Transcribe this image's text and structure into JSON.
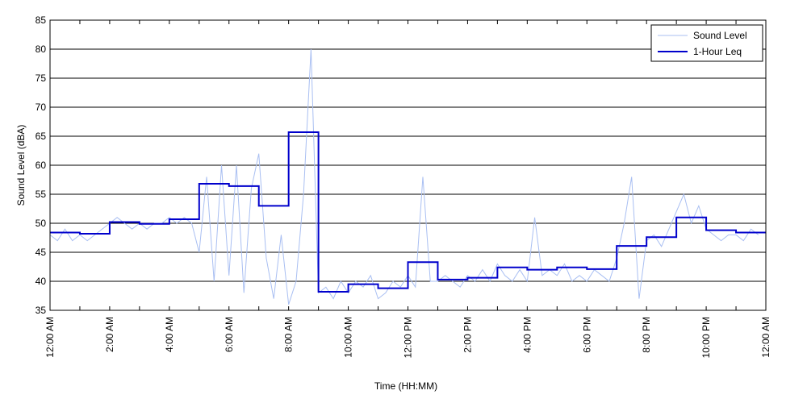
{
  "chart_data": {
    "type": "line",
    "xlabel": "Time (HH:MM)",
    "ylabel": "Sound Level (dBA)",
    "xlim": [
      0,
      24
    ],
    "ylim": [
      35,
      85
    ],
    "yticks": [
      35,
      40,
      45,
      50,
      55,
      60,
      65,
      70,
      75,
      80,
      85
    ],
    "xticks": [
      {
        "value": 0,
        "label": "12:00 AM"
      },
      {
        "value": 2,
        "label": "2:00 AM"
      },
      {
        "value": 4,
        "label": "4:00 AM"
      },
      {
        "value": 6,
        "label": "6:00 AM"
      },
      {
        "value": 8,
        "label": "8:00 AM"
      },
      {
        "value": 10,
        "label": "10:00 AM"
      },
      {
        "value": 12,
        "label": "12:00 PM"
      },
      {
        "value": 14,
        "label": "2:00 PM"
      },
      {
        "value": 16,
        "label": "4:00 PM"
      },
      {
        "value": 18,
        "label": "6:00 PM"
      },
      {
        "value": 20,
        "label": "8:00 PM"
      },
      {
        "value": 22,
        "label": "10:00 PM"
      },
      {
        "value": 24,
        "label": "12:00 AM"
      }
    ],
    "xminorticks": [
      1,
      3,
      5,
      7,
      9,
      11,
      13,
      15,
      17,
      19,
      21,
      23
    ],
    "grid": true,
    "legend": "upper right",
    "series": [
      {
        "name": "Sound Level",
        "color": "#a9bff2",
        "style": "line",
        "x": [
          0,
          0.25,
          0.5,
          0.75,
          1,
          1.25,
          1.5,
          1.75,
          2,
          2.25,
          2.5,
          2.75,
          3,
          3.25,
          3.5,
          3.75,
          4,
          4.25,
          4.5,
          4.75,
          5,
          5.25,
          5.5,
          5.75,
          6,
          6.25,
          6.5,
          6.75,
          7,
          7.25,
          7.5,
          7.75,
          8,
          8.25,
          8.5,
          8.75,
          9,
          9.25,
          9.5,
          9.75,
          10,
          10.25,
          10.5,
          10.75,
          11,
          11.25,
          11.5,
          11.75,
          12,
          12.25,
          12.5,
          12.75,
          13,
          13.25,
          13.5,
          13.75,
          14,
          14.25,
          14.5,
          14.75,
          15,
          15.25,
          15.5,
          15.75,
          16,
          16.25,
          16.5,
          16.75,
          17,
          17.25,
          17.5,
          17.75,
          18,
          18.25,
          18.5,
          18.75,
          19,
          19.25,
          19.5,
          19.75,
          20,
          20.25,
          20.5,
          20.75,
          21,
          21.25,
          21.5,
          21.75,
          22,
          22.25,
          22.5,
          22.75,
          23,
          23.25,
          23.5,
          23.75
        ],
        "values": [
          48,
          47,
          49,
          47,
          48,
          47,
          48,
          49,
          50,
          51,
          50,
          49,
          50,
          49,
          50,
          50,
          51,
          50,
          51,
          50,
          45,
          58,
          40,
          60,
          41,
          60,
          38,
          56,
          62,
          44,
          37,
          48,
          36,
          40,
          55,
          80,
          38,
          39,
          37,
          40,
          38,
          40,
          39,
          41,
          37,
          38,
          40,
          39,
          41,
          39,
          58,
          40,
          40,
          41,
          40,
          39,
          41,
          40,
          42,
          40,
          43,
          41,
          40,
          42,
          40,
          51,
          41,
          42,
          41,
          43,
          40,
          41,
          40,
          42,
          41,
          40,
          44,
          50,
          58,
          37,
          47,
          48,
          46,
          49,
          52,
          55,
          50,
          53,
          49,
          48,
          47,
          48,
          48,
          47,
          49,
          48
        ]
      },
      {
        "name": "1-Hour Leq",
        "color": "#0000cc",
        "style": "steps-post",
        "x": [
          0,
          1,
          2,
          3,
          4,
          5,
          6,
          7,
          8,
          9,
          10,
          11,
          12,
          13,
          14,
          15,
          16,
          17,
          18,
          19,
          20,
          21,
          22,
          23
        ],
        "values": [
          48.4,
          48.2,
          50.2,
          49.9,
          50.7,
          56.8,
          56.4,
          53.0,
          65.7,
          38.2,
          39.5,
          38.8,
          43.3,
          40.3,
          40.6,
          42.4,
          42.0,
          42.4,
          42.1,
          46.1,
          47.6,
          51.0,
          48.8,
          48.4
        ]
      }
    ]
  }
}
